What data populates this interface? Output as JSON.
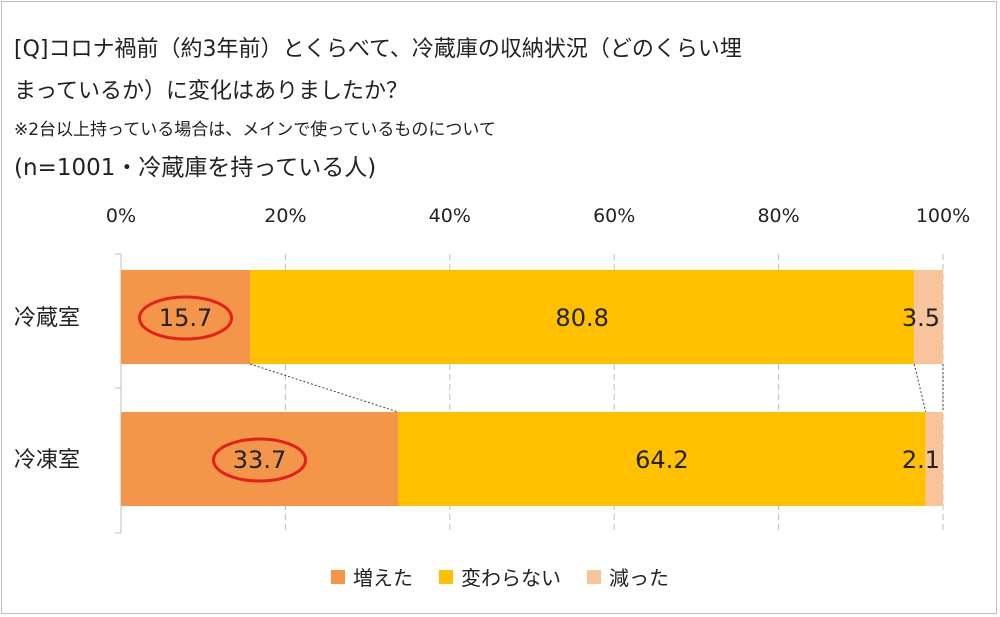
{
  "title": {
    "line1": "[Q]コロナ禍前（約3年前）とくらべて、冷蔵庫の収納状況（どのくらい埋",
    "line2": "まっているか）に変化はありましたか？",
    "note": "※2台以上持っている場合は、メインで使っているものについて",
    "sample": "(n=1001・冷蔵庫を持っている人)"
  },
  "chart_data": {
    "type": "bar",
    "orientation": "horizontal",
    "stacked": true,
    "categories": [
      "冷蔵室",
      "冷凍室"
    ],
    "series": [
      {
        "name": "増えた",
        "values": [
          15.7,
          33.7
        ],
        "color": "#f4964a"
      },
      {
        "name": "変わらない",
        "values": [
          80.8,
          64.2
        ],
        "color": "#ffc000"
      },
      {
        "name": "減った",
        "values": [
          3.5,
          2.1
        ],
        "color": "#f8c49c"
      }
    ],
    "xlim": [
      0,
      100
    ],
    "xticks": [
      "0%",
      "20%",
      "40%",
      "60%",
      "80%",
      "100%"
    ],
    "grid": true,
    "series_lines": true,
    "highlighted_series": "増えた",
    "highlight_color": "#e3201c",
    "legend_position": "bottom"
  }
}
